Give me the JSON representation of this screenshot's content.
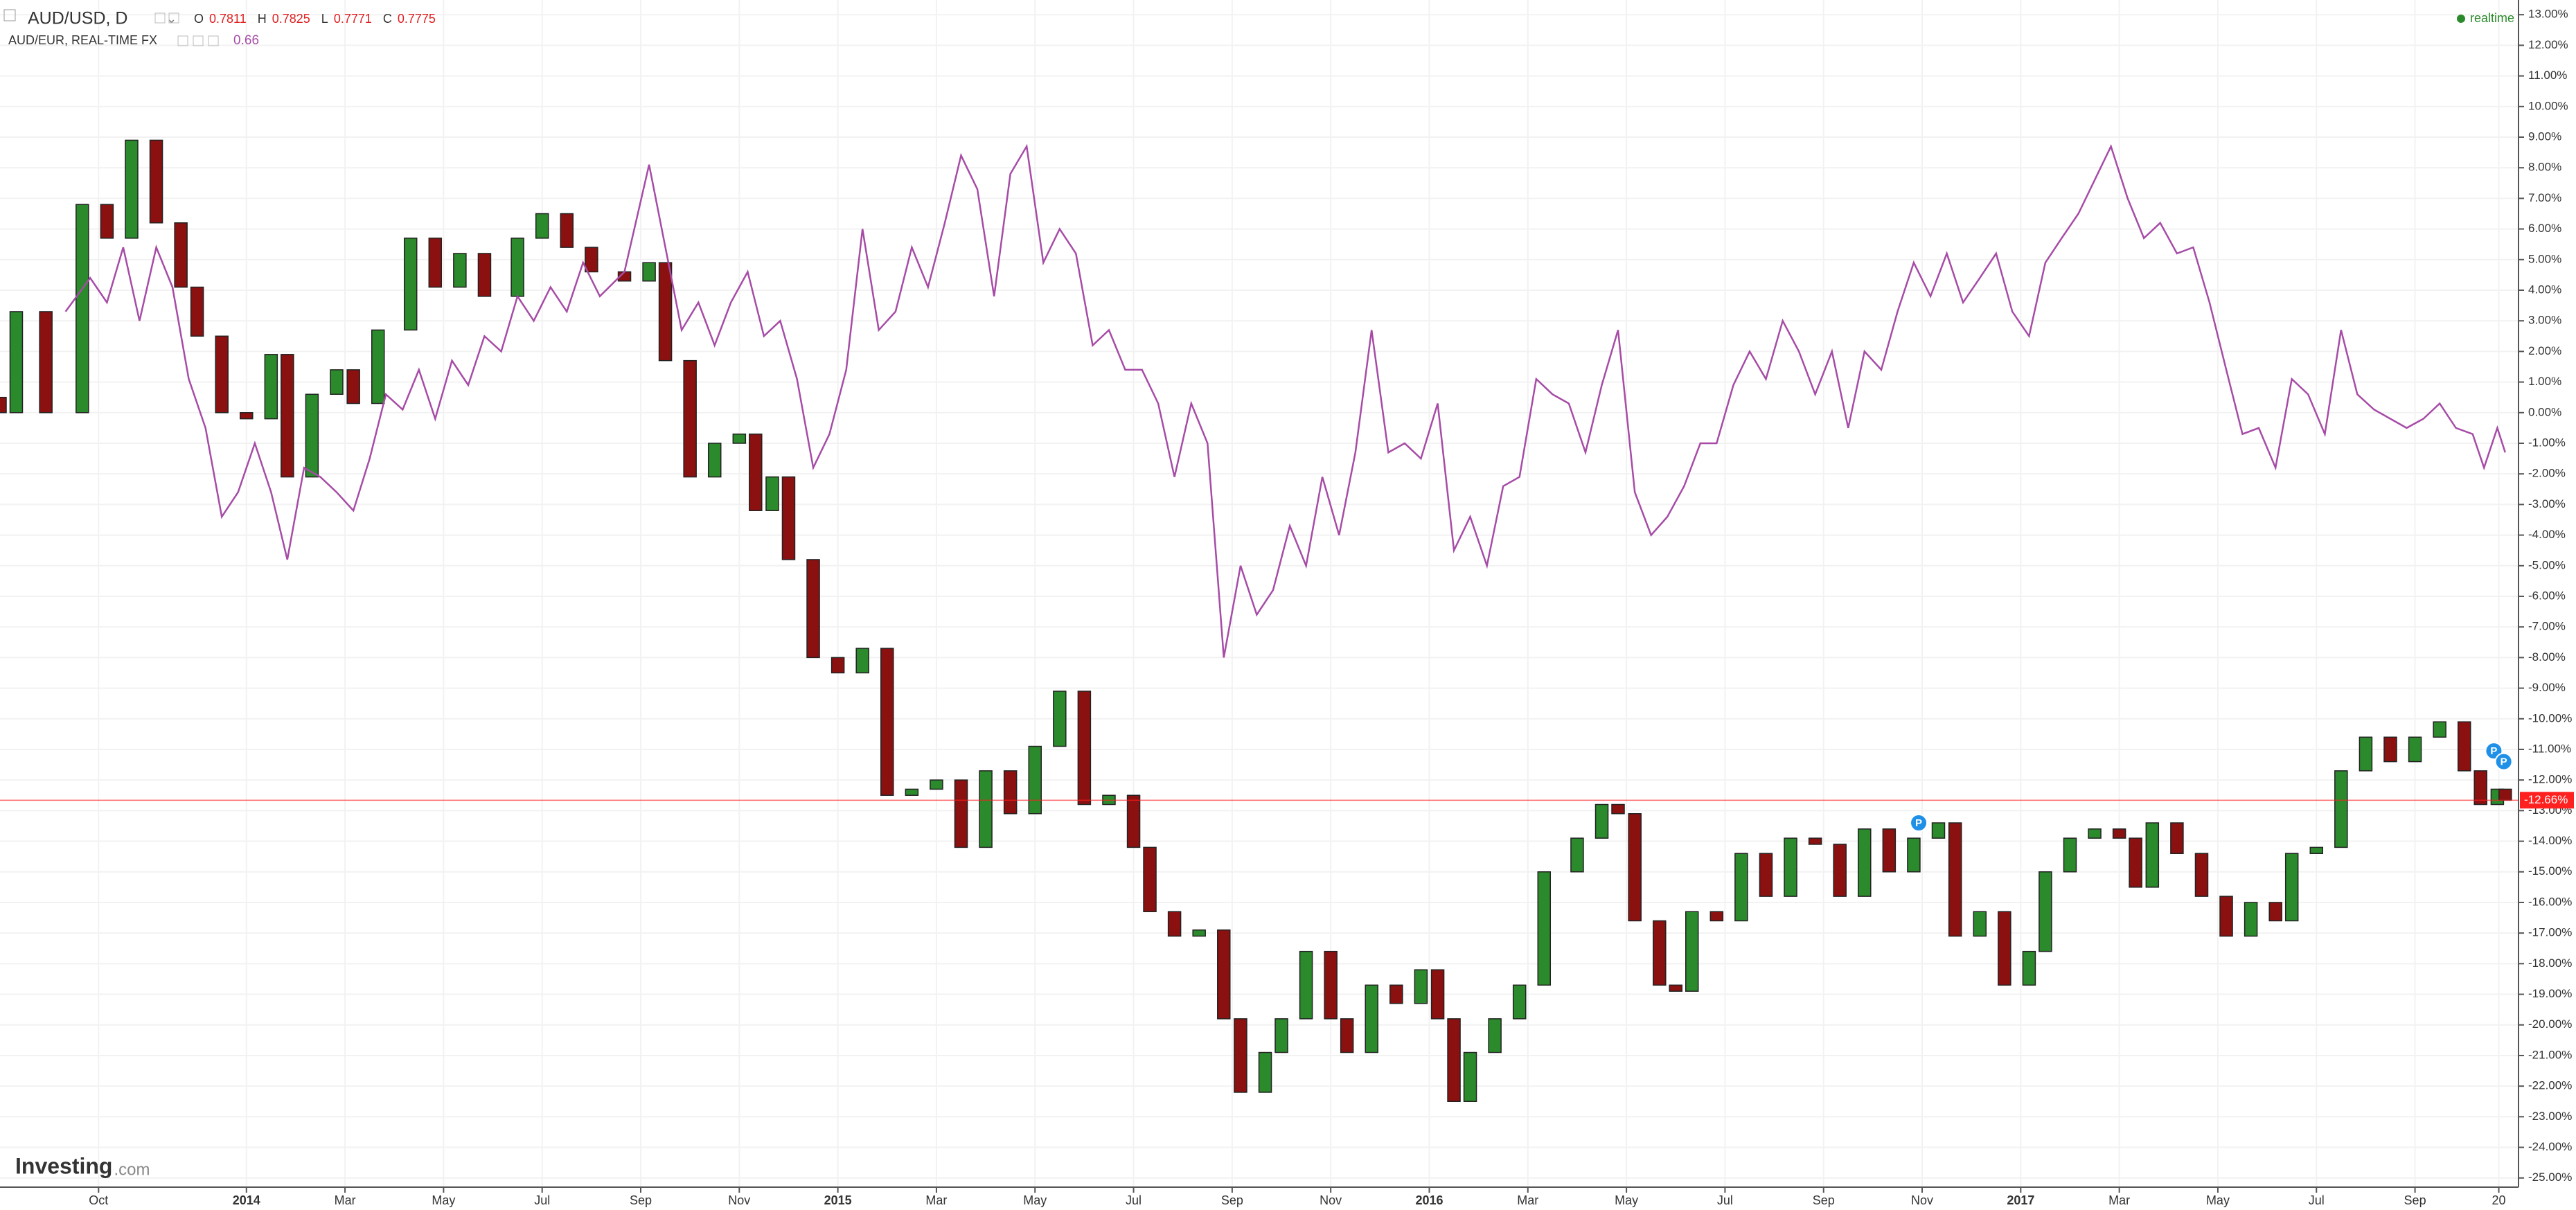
{
  "chart_data": {
    "type": "candlestick",
    "status": "realtime",
    "brand": {
      "name": "Investing",
      "suffix": ".com"
    },
    "legend_fields": [
      {
        "label": "O",
        "value": 0.7811
      },
      {
        "label": "H",
        "value": 0.7825
      },
      {
        "label": "L",
        "value": 0.7771
      },
      {
        "label": "C",
        "value": 0.7775
      }
    ],
    "xlim": [
      0,
      51.1
    ],
    "ylim": [
      -25.3,
      13.48
    ],
    "grid": true,
    "xticks": [
      {
        "value": 2,
        "label": "Oct"
      },
      {
        "value": 5,
        "label": "2014"
      },
      {
        "value": 7,
        "label": "Mar"
      },
      {
        "value": 9,
        "label": "May"
      },
      {
        "value": 11,
        "label": "Jul"
      },
      {
        "value": 13,
        "label": "Sep"
      },
      {
        "value": 15,
        "label": "Nov"
      },
      {
        "value": 17,
        "label": "2015"
      },
      {
        "value": 19,
        "label": "Mar"
      },
      {
        "value": 21,
        "label": "May"
      },
      {
        "value": 23,
        "label": "Jul"
      },
      {
        "value": 25,
        "label": "Sep"
      },
      {
        "value": 27,
        "label": "Nov"
      },
      {
        "value": 29,
        "label": "2016"
      },
      {
        "value": 31,
        "label": "Mar"
      },
      {
        "value": 33,
        "label": "May"
      },
      {
        "value": 35,
        "label": "Jul"
      },
      {
        "value": 37,
        "label": "Sep"
      },
      {
        "value": 39,
        "label": "Nov"
      },
      {
        "value": 41,
        "label": "2017"
      },
      {
        "value": 43,
        "label": "Mar"
      },
      {
        "value": 45,
        "label": "May"
      },
      {
        "value": 47,
        "label": "Jul"
      },
      {
        "value": 49,
        "label": "Sep"
      },
      {
        "value": 50.7,
        "label": "20"
      }
    ],
    "yticks": [
      {
        "value": 13,
        "label": "13.00%"
      },
      {
        "value": 12,
        "label": "12.00%"
      },
      {
        "value": 11,
        "label": "11.00%"
      },
      {
        "value": 10,
        "label": "10.00%"
      },
      {
        "value": 9,
        "label": "9.00%"
      },
      {
        "value": 8,
        "label": "8.00%"
      },
      {
        "value": 7,
        "label": "7.00%"
      },
      {
        "value": 6,
        "label": "6.00%"
      },
      {
        "value": 5,
        "label": "5.00%"
      },
      {
        "value": 4,
        "label": "4.00%"
      },
      {
        "value": 3,
        "label": "3.00%"
      },
      {
        "value": 2,
        "label": "2.00%"
      },
      {
        "value": 1,
        "label": "1.00%"
      },
      {
        "value": 0,
        "label": "0.00%"
      },
      {
        "value": -1,
        "label": "-1.00%"
      },
      {
        "value": -2,
        "label": "-2.00%"
      },
      {
        "value": -3,
        "label": "-3.00%"
      },
      {
        "value": -4,
        "label": "-4.00%"
      },
      {
        "value": -5,
        "label": "-5.00%"
      },
      {
        "value": -6,
        "label": "-6.00%"
      },
      {
        "value": -7,
        "label": "-7.00%"
      },
      {
        "value": -8,
        "label": "-8.00%"
      },
      {
        "value": -9,
        "label": "-9.00%"
      },
      {
        "value": -10,
        "label": "-10.00%"
      },
      {
        "value": -11,
        "label": "-11.00%"
      },
      {
        "value": -12,
        "label": "-12.00%"
      },
      {
        "value": -13,
        "label": "-13.00%"
      },
      {
        "value": -14,
        "label": "-14.00%"
      },
      {
        "value": -15,
        "label": "-15.00%"
      },
      {
        "value": -16,
        "label": "-16.00%"
      },
      {
        "value": -17,
        "label": "-17.00%"
      },
      {
        "value": -18,
        "label": "-18.00%"
      },
      {
        "value": -19,
        "label": "-19.00%"
      },
      {
        "value": -20,
        "label": "-20.00%"
      },
      {
        "value": -21,
        "label": "-21.00%"
      },
      {
        "value": -22,
        "label": "-22.00%"
      },
      {
        "value": -23,
        "label": "-23.00%"
      },
      {
        "value": -24,
        "label": "-24.00%"
      },
      {
        "value": -25,
        "label": "-25.00%"
      }
    ],
    "last_price": {
      "value": -12.66,
      "label": "-12.66%",
      "color": "#ff2020"
    },
    "event_markers": [
      {
        "x": 38.93,
        "y": -13.4,
        "label": "P"
      },
      {
        "x": 50.6,
        "y": -11.05,
        "label": "P"
      },
      {
        "x": 50.8,
        "y": -11.4,
        "label": "P"
      }
    ],
    "series": [
      {
        "name": "AUD/USD, D",
        "type": "candlestick",
        "up_color": "#2b8a2b",
        "down_color": "#8b1010",
        "x": [
          0,
          0.33,
          0.93,
          1.67,
          2.17,
          2.67,
          3.17,
          3.67,
          4,
          4.5,
          5,
          5.5,
          5.83,
          6.33,
          6.83,
          7.17,
          7.67,
          8.33,
          8.83,
          9.33,
          9.83,
          10.5,
          11,
          11.5,
          12,
          12.67,
          13.17,
          13.5,
          14,
          14.5,
          15,
          15.33,
          15.67,
          16,
          16.5,
          17,
          17.5,
          18,
          18.5,
          19,
          19.5,
          20,
          20.5,
          21,
          21.5,
          22,
          22.5,
          23,
          23.33,
          23.83,
          24.33,
          24.83,
          25.17,
          25.67,
          26,
          26.5,
          27,
          27.33,
          27.83,
          28.33,
          28.83,
          29.17,
          29.5,
          29.83,
          30.33,
          30.83,
          31.33,
          32,
          32.5,
          32.83,
          33.17,
          33.67,
          34,
          34.33,
          34.83,
          35.33,
          35.83,
          36.33,
          36.83,
          37.33,
          37.83,
          38.33,
          38.83,
          39.33,
          39.67,
          40.17,
          40.67,
          41.17,
          41.5,
          42,
          42.5,
          43,
          43.33,
          43.67,
          44.17,
          44.67,
          45.17,
          45.67,
          46.17,
          46.5,
          47,
          47.5,
          48,
          48.5,
          49,
          49.5,
          50,
          50.33,
          50.67,
          50.83
        ],
        "open": [
          0.5,
          0,
          3.3,
          0,
          6.8,
          5.7,
          8.9,
          6.2,
          4.1,
          2.5,
          0,
          -0.2,
          1.9,
          -2.1,
          0.6,
          1.4,
          0.3,
          2.7,
          5.7,
          4.1,
          5.2,
          3.8,
          5.7,
          6.5,
          5.4,
          4.6,
          4.3,
          4.9,
          1.7,
          -2.1,
          -1.0,
          -0.7,
          -3.2,
          -2.1,
          -4.8,
          -8.0,
          -8.5,
          -7.7,
          -12.5,
          -12.3,
          -12.0,
          -14.2,
          -11.7,
          -13.1,
          -10.9,
          -9.1,
          -12.8,
          -12.5,
          -14.2,
          -16.3,
          -17.1,
          -16.9,
          -19.8,
          -22.2,
          -20.9,
          -19.8,
          -17.6,
          -19.8,
          -20.9,
          -18.7,
          -19.3,
          -18.2,
          -19.8,
          -22.5,
          -20.9,
          -19.8,
          -18.7,
          -15.0,
          -13.9,
          -12.8,
          -13.1,
          -16.6,
          -18.7,
          -18.9,
          -16.3,
          -16.6,
          -14.4,
          -15.8,
          -13.9,
          -14.1,
          -15.8,
          -13.6,
          -15.0,
          -13.9,
          -13.4,
          -17.1,
          -16.3,
          -18.7,
          -17.6,
          -15.0,
          -13.9,
          -13.6,
          -13.9,
          -15.5,
          -13.4,
          -14.4,
          -15.8,
          -17.1,
          -16.0,
          -16.6,
          -14.4,
          -14.2,
          -11.7,
          -10.6,
          -11.4,
          -10.6,
          -10.1,
          -11.7,
          -12.8,
          -12.3
        ],
        "close": [
          0,
          3.3,
          0,
          6.8,
          5.7,
          8.9,
          6.2,
          4.1,
          2.5,
          0,
          -0.2,
          1.9,
          -2.1,
          0.6,
          1.4,
          0.3,
          2.7,
          5.7,
          4.1,
          5.2,
          3.8,
          5.7,
          6.5,
          5.4,
          4.6,
          4.3,
          4.9,
          1.7,
          -2.1,
          -1.0,
          -0.7,
          -3.2,
          -2.1,
          -4.8,
          -8.0,
          -8.5,
          -7.7,
          -12.5,
          -12.3,
          -12.0,
          -14.2,
          -11.7,
          -13.1,
          -10.9,
          -9.1,
          -12.8,
          -12.5,
          -14.2,
          -16.3,
          -17.1,
          -16.9,
          -19.8,
          -22.2,
          -20.9,
          -19.8,
          -17.6,
          -19.8,
          -20.9,
          -18.7,
          -19.3,
          -18.2,
          -19.8,
          -22.5,
          -20.9,
          -19.8,
          -18.7,
          -15.0,
          -13.9,
          -12.8,
          -13.1,
          -16.6,
          -18.7,
          -18.9,
          -16.3,
          -16.6,
          -14.4,
          -15.8,
          -13.9,
          -14.1,
          -15.8,
          -13.6,
          -15.0,
          -13.9,
          -13.4,
          -17.1,
          -16.3,
          -18.7,
          -17.6,
          -15.0,
          -13.9,
          -13.6,
          -13.9,
          -15.5,
          -13.4,
          -14.4,
          -15.8,
          -17.1,
          -16.0,
          -16.6,
          -14.4,
          -14.2,
          -11.7,
          -10.6,
          -11.4,
          -10.6,
          -10.1,
          -11.7,
          -12.8,
          -12.3,
          -12.66
        ]
      },
      {
        "name": "AUD/EUR, REAL-TIME FX",
        "type": "line",
        "color": "#a64ca6",
        "last_value": 0.66,
        "x": [
          1.33,
          1.83,
          2.17,
          2.5,
          2.83,
          3.17,
          3.5,
          3.83,
          4.17,
          4.5,
          4.83,
          5.17,
          5.5,
          5.83,
          6.17,
          6.5,
          6.83,
          7.17,
          7.5,
          7.83,
          8.17,
          8.5,
          8.83,
          9.17,
          9.5,
          9.83,
          10.17,
          10.5,
          10.83,
          11.17,
          11.5,
          11.83,
          12.17,
          12.67,
          13.17,
          13.5,
          13.83,
          14.17,
          14.5,
          14.83,
          15.17,
          15.5,
          15.83,
          16.17,
          16.5,
          16.83,
          17.17,
          17.5,
          17.83,
          18.17,
          18.5,
          18.83,
          19.17,
          19.5,
          19.83,
          20.17,
          20.5,
          20.83,
          21.17,
          21.5,
          21.83,
          22.17,
          22.5,
          22.83,
          23.17,
          23.5,
          23.83,
          24.17,
          24.5,
          24.83,
          25.17,
          25.5,
          25.83,
          26.17,
          26.5,
          26.83,
          27.17,
          27.5,
          27.83,
          28.17,
          28.5,
          28.83,
          29.17,
          29.5,
          29.83,
          30.17,
          30.5,
          30.83,
          31.17,
          31.5,
          31.83,
          32.17,
          32.5,
          32.83,
          33.17,
          33.5,
          33.83,
          34.17,
          34.5,
          34.83,
          35.17,
          35.5,
          35.83,
          36.17,
          36.5,
          36.83,
          37.17,
          37.5,
          37.83,
          38.17,
          38.5,
          38.83,
          39.17,
          39.5,
          39.83,
          40.17,
          40.5,
          40.83,
          41.17,
          41.5,
          41.83,
          42.17,
          42.5,
          42.83,
          43.17,
          43.5,
          43.83,
          44.17,
          44.5,
          44.83,
          45.17,
          45.5,
          45.83,
          46.17,
          46.5,
          46.83,
          47.17,
          47.5,
          47.83,
          48.17,
          48.5,
          48.83,
          49.17,
          49.5,
          49.83,
          50.17,
          50.4,
          50.67,
          50.83
        ],
        "values": [
          3.3,
          4.4,
          3.6,
          5.4,
          3.0,
          5.4,
          4.1,
          1.1,
          -0.5,
          -3.4,
          -2.6,
          -1.0,
          -2.6,
          -4.8,
          -1.8,
          -2.1,
          -2.6,
          -3.2,
          -1.5,
          0.6,
          0.1,
          1.4,
          -0.2,
          1.7,
          0.9,
          2.5,
          2.0,
          3.8,
          3.0,
          4.1,
          3.3,
          4.9,
          3.8,
          4.6,
          8.1,
          5.4,
          2.7,
          3.6,
          2.2,
          3.6,
          4.6,
          2.5,
          3.0,
          1.1,
          -1.8,
          -0.7,
          1.4,
          6.0,
          2.7,
          3.3,
          5.4,
          4.1,
          6.2,
          8.4,
          7.3,
          3.8,
          7.8,
          8.7,
          4.9,
          6.0,
          5.2,
          2.2,
          2.7,
          1.4,
          1.4,
          0.3,
          -2.1,
          0.3,
          -1.0,
          -8.0,
          -5.0,
          -6.6,
          -5.8,
          -3.7,
          -5.0,
          -2.1,
          -4.0,
          -1.3,
          2.7,
          -1.3,
          -1.0,
          -1.5,
          0.3,
          -4.5,
          -3.4,
          -5.0,
          -2.4,
          -2.1,
          1.1,
          0.6,
          0.3,
          -1.3,
          0.9,
          2.7,
          -2.6,
          -4.0,
          -3.4,
          -2.4,
          -1.0,
          -1.0,
          0.9,
          2.0,
          1.1,
          3.0,
          2.0,
          0.6,
          2.0,
          -0.5,
          2.0,
          1.4,
          3.3,
          4.9,
          3.8,
          5.2,
          3.6,
          4.4,
          5.2,
          3.3,
          2.5,
          4.9,
          5.7,
          6.5,
          7.6,
          8.7,
          7.0,
          5.7,
          6.2,
          5.2,
          5.4,
          3.6,
          1.4,
          -0.7,
          -0.5,
          -1.8,
          1.1,
          0.6,
          -0.7,
          2.7,
          0.6,
          0.1,
          -0.2,
          -0.5,
          -0.2,
          0.3,
          -0.5,
          -0.7,
          -1.8,
          -0.5,
          -1.3
        ]
      }
    ]
  }
}
